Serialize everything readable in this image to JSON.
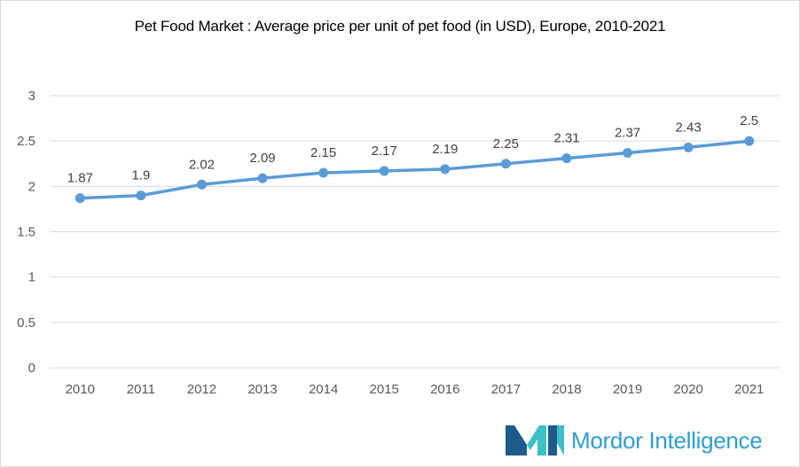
{
  "chart_data": {
    "type": "line",
    "title": "Pet Food Market : Average price per unit of pet food (in USD), Europe, 2010-2021",
    "xlabel": "",
    "ylabel": "",
    "categories": [
      "2010",
      "2011",
      "2012",
      "2013",
      "2014",
      "2015",
      "2016",
      "2017",
      "2018",
      "2019",
      "2020",
      "2021"
    ],
    "series": [
      {
        "values": [
          1.87,
          1.9,
          2.02,
          2.09,
          2.15,
          2.17,
          2.19,
          2.25,
          2.31,
          2.37,
          2.43,
          2.5
        ]
      }
    ],
    "data_labels": [
      "1.87",
      "1.9",
      "2.02",
      "2.09",
      "2.15",
      "2.17",
      "2.19",
      "2.25",
      "2.31",
      "2.37",
      "2.43",
      "2.5"
    ],
    "ylim": [
      0,
      3
    ],
    "yticks": [
      "0",
      "0.5",
      "1",
      "1.5",
      "2",
      "2.5",
      "3"
    ],
    "grid": true,
    "legend": "none",
    "line_color": "#5b9bd5"
  },
  "branding": {
    "name_part1": "Mordor",
    "name_part2": " Intelligence",
    "colors": {
      "dark": "#1f5b8a",
      "teal": "#3cc0c8",
      "text": "#2f9cd0"
    }
  }
}
